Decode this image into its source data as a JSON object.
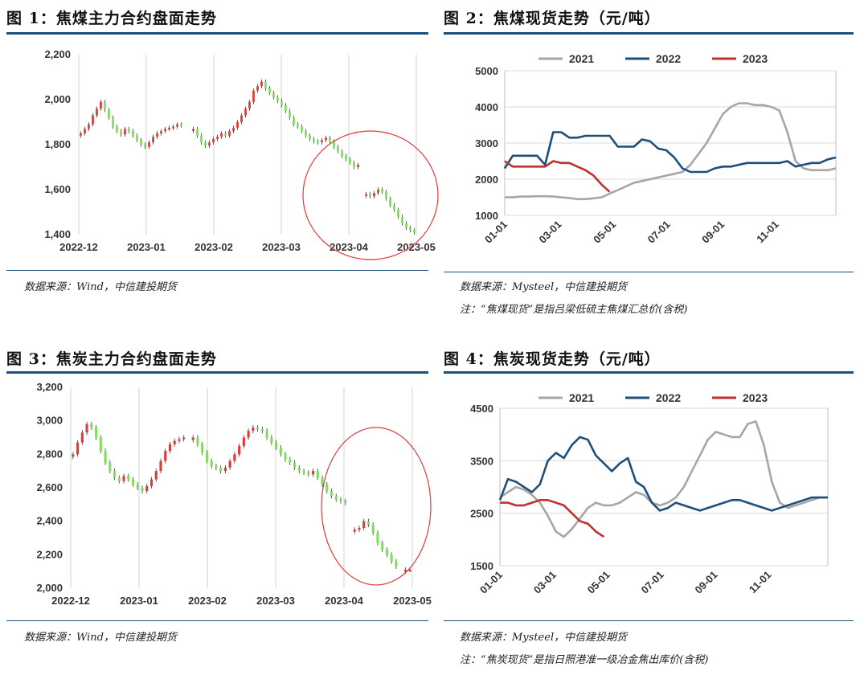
{
  "figures": [
    {
      "title": "图 1：焦煤主力合约盘面走势",
      "source": "数据来源：Wind，中信建投期货",
      "note": ""
    },
    {
      "title": "图 2：焦煤现货走势（元/吨）",
      "source": "数据来源：Mysteel，中信建投期货",
      "note": "注：“焦煤现货”是指吕梁低硫主焦煤汇总价(含税)"
    },
    {
      "title": "图 3：焦炭主力合约盘面走势",
      "source": "数据来源：Wind，中信建投期货",
      "note": ""
    },
    {
      "title": "图 4：焦炭现货走势（元/吨）",
      "source": "数据来源：Mysteel，中信建投期货",
      "note": "注：“焦炭现货”是指日照港准一级冶金焦出库价(含税)"
    }
  ],
  "chart_data": [
    {
      "type": "candlestick",
      "x_tick_labels": [
        "2022-12",
        "2023-01",
        "2023-02",
        "2023-03",
        "2023-04",
        "2023-05"
      ],
      "ylim": [
        1400,
        2200
      ],
      "y_ticks": [
        1400,
        1600,
        1800,
        2000,
        2200
      ],
      "y_tick_labels": [
        "1,400",
        "1,600",
        "1,800",
        "2,000",
        "2,200"
      ],
      "grid": "vertical",
      "colors": {
        "up": "#e03a3a",
        "down": "#7fe05a",
        "annotation": "#e03a3a"
      },
      "annotation": "ellipse around April–May decline",
      "prices": [
        1850,
        1870,
        1890,
        1930,
        1960,
        1990,
        1955,
        1920,
        1880,
        1860,
        1845,
        1870,
        1860,
        1840,
        1820,
        1800,
        1790,
        1810,
        1835,
        1850,
        1860,
        1870,
        1875,
        1880,
        1890,
        1885,
        null,
        null,
        1870,
        1840,
        1810,
        1795,
        1810,
        1825,
        1835,
        1850,
        1840,
        1860,
        1875,
        1900,
        1930,
        1960,
        1990,
        2040,
        2060,
        2080,
        2050,
        2030,
        2010,
        1995,
        1975,
        1950,
        1920,
        1890,
        1880,
        1860,
        1840,
        1825,
        1815,
        1810,
        1820,
        1830,
        1815,
        1790,
        1770,
        1750,
        1735,
        1720,
        1700,
        1710,
        null,
        1580,
        1570,
        1585,
        1600,
        1590,
        1560,
        1530,
        1510,
        1480,
        1450,
        1430,
        1420,
        1410
      ]
    },
    {
      "type": "line",
      "x_tick_labels": [
        "01-01",
        "03-01",
        "05-01",
        "07-01",
        "09-01",
        "11-01"
      ],
      "ylim": [
        1000,
        5000
      ],
      "y_ticks": [
        1000,
        2000,
        3000,
        4000,
        5000
      ],
      "grid": "horizontal",
      "legend": "top",
      "series": [
        {
          "name": "2021",
          "color": "#a6a6a6",
          "values": [
            1500,
            1500,
            1520,
            1520,
            1530,
            1530,
            1520,
            1500,
            1480,
            1450,
            1450,
            1470,
            1500,
            1600,
            1700,
            1800,
            1900,
            1950,
            2000,
            2050,
            2100,
            2150,
            2200,
            2400,
            2700,
            3000,
            3400,
            3800,
            4000,
            4100,
            4100,
            4050,
            4050,
            4000,
            3900,
            3300,
            2500,
            2300,
            2250,
            2250,
            2250,
            2300
          ]
        },
        {
          "name": "2022",
          "color": "#1f4e79",
          "values": [
            2300,
            2650,
            2650,
            2650,
            2650,
            2400,
            3300,
            3300,
            3150,
            3150,
            3200,
            3200,
            3200,
            3200,
            2900,
            2900,
            2900,
            3100,
            3050,
            2850,
            2800,
            2600,
            2300,
            2200,
            2200,
            2200,
            2300,
            2350,
            2350,
            2400,
            2450,
            2450,
            2450,
            2450,
            2450,
            2500,
            2350,
            2400,
            2450,
            2450,
            2550,
            2600
          ]
        },
        {
          "name": "2023",
          "color": "#c0302e",
          "values": [
            2500,
            2350,
            2350,
            2350,
            2350,
            2350,
            2500,
            2450,
            2450,
            2350,
            2250,
            2100,
            1850,
            1650
          ]
        }
      ]
    },
    {
      "type": "candlestick",
      "x_tick_labels": [
        "2022-12",
        "2023-01",
        "2023-02",
        "2023-03",
        "2023-04",
        "2023-05"
      ],
      "ylim": [
        2000,
        3200
      ],
      "y_ticks": [
        2000,
        2200,
        2400,
        2600,
        2800,
        3000,
        3200
      ],
      "y_tick_labels": [
        "2,000",
        "2,200",
        "2,400",
        "2,600",
        "2,800",
        "3,000",
        "3,200"
      ],
      "grid": "vertical",
      "colors": {
        "up": "#e03a3a",
        "down": "#7fe05a",
        "annotation": "#e03a3a"
      },
      "annotation": "ellipse around April–May decline",
      "prices": [
        2800,
        2870,
        2930,
        2980,
        2960,
        2900,
        2820,
        2750,
        2700,
        2660,
        2640,
        2670,
        2650,
        2620,
        2600,
        2580,
        2610,
        2650,
        2700,
        2760,
        2820,
        2860,
        2880,
        2890,
        2900,
        null,
        2900,
        2860,
        2810,
        2760,
        2730,
        2720,
        2700,
        2720,
        2760,
        2800,
        2850,
        2900,
        2940,
        2960,
        2950,
        2940,
        2900,
        2870,
        2840,
        2800,
        2770,
        2750,
        2720,
        2700,
        2690,
        2680,
        2700,
        2660,
        2620,
        2580,
        2550,
        2530,
        2520,
        2510,
        null,
        2350,
        2360,
        2400,
        2380,
        2330,
        2270,
        2230,
        2200,
        2160,
        2130,
        null,
        2110,
        2110
      ]
    },
    {
      "type": "line",
      "x_tick_labels": [
        "01-01",
        "03-01",
        "05-01",
        "07-01",
        "09-01",
        "11-01"
      ],
      "ylim": [
        1500,
        4500
      ],
      "y_ticks": [
        1500,
        2500,
        3500,
        4500
      ],
      "grid": "horizontal",
      "legend": "top",
      "series": [
        {
          "name": "2021",
          "color": "#a6a6a6",
          "values": [
            2800,
            2900,
            3000,
            2950,
            2850,
            2700,
            2450,
            2150,
            2050,
            2200,
            2400,
            2600,
            2700,
            2650,
            2650,
            2700,
            2800,
            2900,
            2850,
            2700,
            2650,
            2700,
            2800,
            3000,
            3300,
            3600,
            3900,
            4050,
            4000,
            3950,
            3950,
            4200,
            4250,
            3800,
            3100,
            2700,
            2600,
            2650,
            2700,
            2750,
            2800,
            2800
          ]
        },
        {
          "name": "2022",
          "color": "#1f4e79",
          "values": [
            2750,
            3150,
            3100,
            3000,
            2900,
            3050,
            3500,
            3650,
            3550,
            3800,
            3950,
            3900,
            3600,
            3450,
            3300,
            3450,
            3550,
            3100,
            3000,
            2700,
            2550,
            2600,
            2700,
            2650,
            2600,
            2550,
            2600,
            2650,
            2700,
            2750,
            2750,
            2700,
            2650,
            2600,
            2550,
            2600,
            2650,
            2700,
            2750,
            2800,
            2800,
            2800
          ]
        },
        {
          "name": "2023",
          "color": "#c0302e",
          "values": [
            2700,
            2700,
            2650,
            2650,
            2700,
            2750,
            2750,
            2700,
            2650,
            2500,
            2350,
            2300,
            2150,
            2050
          ]
        }
      ]
    }
  ]
}
